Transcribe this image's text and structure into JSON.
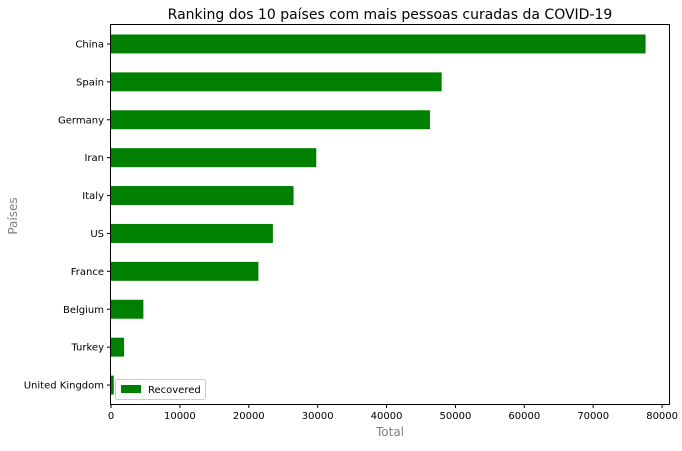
{
  "chart_data": {
    "type": "bar",
    "orientation": "horizontal",
    "title": "Ranking dos 10 países com mais pessoas curadas da COVID-19",
    "xlabel": "Total",
    "ylabel": "Países",
    "categories": [
      "China",
      "Spain",
      "Germany",
      "Iran",
      "Italy",
      "US",
      "France",
      "Belgium",
      "Turkey",
      "United Kingdom"
    ],
    "series": [
      {
        "name": "Recovered",
        "color": "#008000",
        "values": [
          77600,
          48000,
          46300,
          29800,
          26500,
          23500,
          21400,
          4700,
          1900,
          400
        ]
      }
    ],
    "xlim": [
      0,
      81000
    ],
    "xticks": [
      0,
      10000,
      20000,
      30000,
      40000,
      50000,
      60000,
      70000,
      80000
    ],
    "xtick_labels": [
      "0",
      "10000",
      "20000",
      "30000",
      "40000",
      "50000",
      "60000",
      "70000",
      "80000"
    ],
    "grid": false,
    "legend_position": "bottom-left"
  }
}
